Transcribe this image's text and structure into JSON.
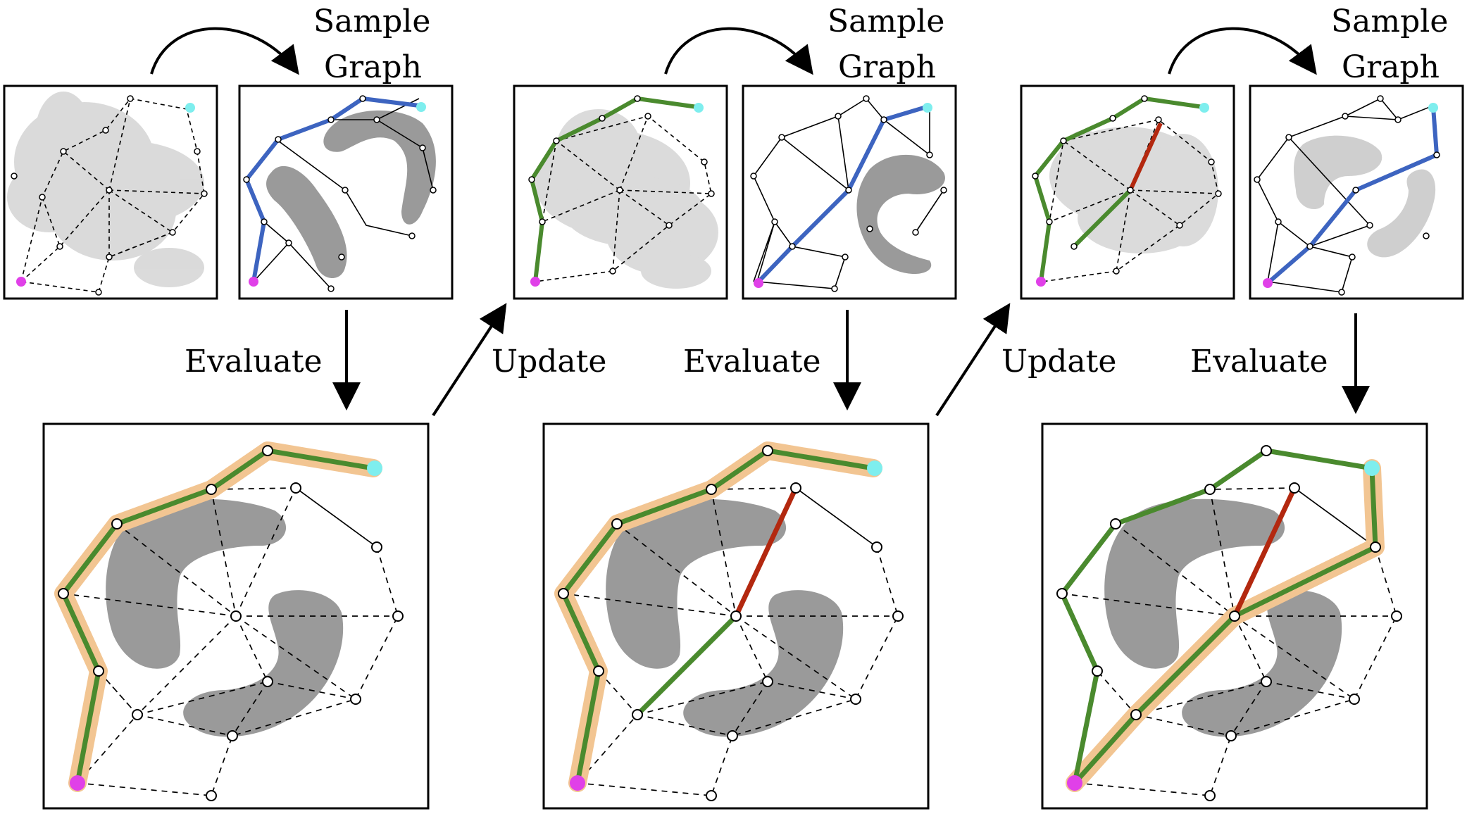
{
  "labels": {
    "sample_graph": [
      "Sample",
      "Graph"
    ],
    "evaluate": "Evaluate",
    "update": "Update"
  },
  "colors": {
    "obstacle": "#9a9a9a",
    "obstacle_prior": "#b8b8b8",
    "path_candidate": "#3d64c0",
    "path_valid": "#4a8a2e",
    "path_invalid": "#b3280f",
    "path_highlight": "#f2c592",
    "start_node": "#e040e8",
    "goal_node": "#7eeeee",
    "frame": "#000000"
  },
  "stages": [
    {
      "step": "sample",
      "index": 1
    },
    {
      "step": "evaluate",
      "index": 1
    },
    {
      "step": "update",
      "index": 1
    },
    {
      "step": "sample",
      "index": 2
    },
    {
      "step": "evaluate",
      "index": 2
    },
    {
      "step": "update",
      "index": 2
    },
    {
      "step": "sample",
      "index": 3
    },
    {
      "step": "evaluate",
      "index": 3
    }
  ]
}
